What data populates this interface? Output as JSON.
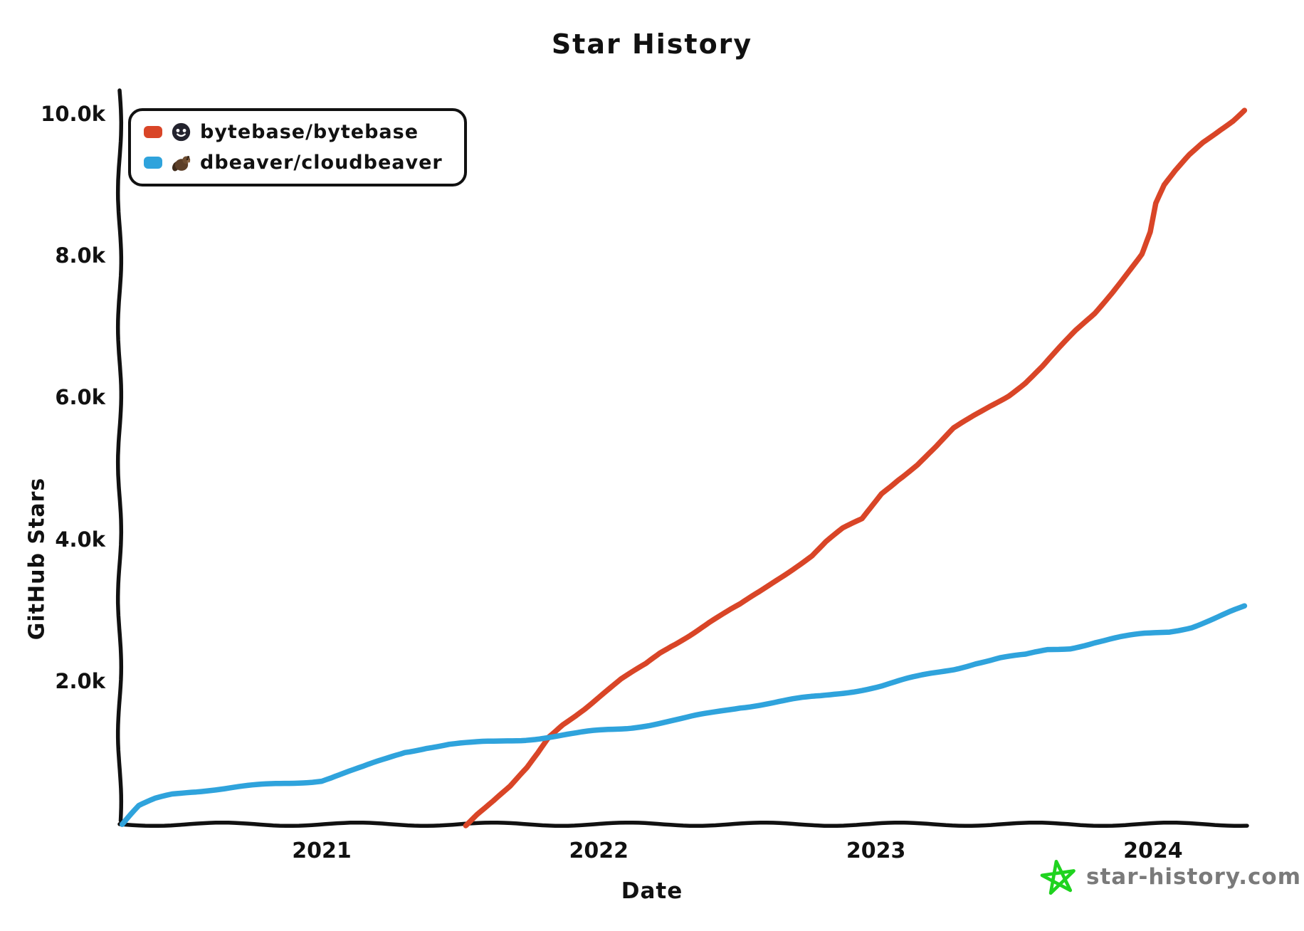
{
  "title": "Star History",
  "watermark": {
    "text": "star-history.com",
    "star_color": "#1fd31f",
    "text_color": "#7a7a7a"
  },
  "legend": {
    "items": [
      {
        "label": "bytebase/bytebase",
        "color": "#d94527",
        "avatar": "bytebase-logo"
      },
      {
        "label": "dbeaver/cloudbeaver",
        "color": "#2fa3dc",
        "avatar": "beaver-logo"
      }
    ]
  },
  "chart_data": {
    "type": "line",
    "title": "Star History",
    "xlabel": "Date",
    "ylabel": "GitHub Stars",
    "xlim": [
      2020.27,
      2024.35
    ],
    "ylim": [
      0,
      10000
    ],
    "grid": false,
    "legend_position": "top-left",
    "style": "xkcd-hand-drawn",
    "axis_color": "#111111",
    "xticks": [
      {
        "label": "2021",
        "value": 2021
      },
      {
        "label": "2022",
        "value": 2022
      },
      {
        "label": "2023",
        "value": 2023
      },
      {
        "label": "2024",
        "value": 2024
      }
    ],
    "yticks": [
      {
        "label": "2.0k",
        "value": 2000
      },
      {
        "label": "4.0k",
        "value": 4000
      },
      {
        "label": "6.0k",
        "value": 6000
      },
      {
        "label": "8.0k",
        "value": 8000
      },
      {
        "label": "10.0k",
        "value": 10000
      }
    ],
    "series": [
      {
        "name": "bytebase/bytebase",
        "color": "#d94527",
        "points": [
          [
            2021.52,
            0
          ],
          [
            2021.56,
            150
          ],
          [
            2021.62,
            330
          ],
          [
            2021.68,
            520
          ],
          [
            2021.74,
            780
          ],
          [
            2021.78,
            1000
          ],
          [
            2021.82,
            1235
          ],
          [
            2021.87,
            1420
          ],
          [
            2021.95,
            1640
          ],
          [
            2022.0,
            1790
          ],
          [
            2022.08,
            2030
          ],
          [
            2022.17,
            2260
          ],
          [
            2022.22,
            2420
          ],
          [
            2022.26,
            2520
          ],
          [
            2022.33,
            2680
          ],
          [
            2022.4,
            2850
          ],
          [
            2022.51,
            3090
          ],
          [
            2022.58,
            3280
          ],
          [
            2022.64,
            3450
          ],
          [
            2022.7,
            3610
          ],
          [
            2022.77,
            3795
          ],
          [
            2022.82,
            3980
          ],
          [
            2022.88,
            4160
          ],
          [
            2022.95,
            4300
          ],
          [
            2023.02,
            4670
          ],
          [
            2023.08,
            4870
          ],
          [
            2023.15,
            5080
          ],
          [
            2023.22,
            5330
          ],
          [
            2023.28,
            5570
          ],
          [
            2023.35,
            5750
          ],
          [
            2023.41,
            5900
          ],
          [
            2023.48,
            6060
          ],
          [
            2023.54,
            6235
          ],
          [
            2023.6,
            6450
          ],
          [
            2023.66,
            6700
          ],
          [
            2023.72,
            6950
          ],
          [
            2023.79,
            7210
          ],
          [
            2023.85,
            7500
          ],
          [
            2023.9,
            7750
          ],
          [
            2023.96,
            8045
          ],
          [
            2023.99,
            8350
          ],
          [
            2024.01,
            8750
          ],
          [
            2024.04,
            9000
          ],
          [
            2024.08,
            9200
          ],
          [
            2024.13,
            9430
          ],
          [
            2024.18,
            9620
          ],
          [
            2024.24,
            9800
          ],
          [
            2024.29,
            9940
          ],
          [
            2024.33,
            10080
          ]
        ]
      },
      {
        "name": "dbeaver/cloudbeaver",
        "color": "#2fa3dc",
        "points": [
          [
            2020.28,
            0
          ],
          [
            2020.31,
            130
          ],
          [
            2020.34,
            250
          ],
          [
            2020.4,
            350
          ],
          [
            2020.46,
            420
          ],
          [
            2020.53,
            465
          ],
          [
            2020.6,
            495
          ],
          [
            2020.7,
            525
          ],
          [
            2020.8,
            550
          ],
          [
            2020.9,
            585
          ],
          [
            2021.0,
            625
          ],
          [
            2021.08,
            720
          ],
          [
            2021.15,
            800
          ],
          [
            2021.22,
            900
          ],
          [
            2021.3,
            1020
          ],
          [
            2021.38,
            1090
          ],
          [
            2021.46,
            1130
          ],
          [
            2021.54,
            1140
          ],
          [
            2021.62,
            1160
          ],
          [
            2021.72,
            1195
          ],
          [
            2021.82,
            1235
          ],
          [
            2021.92,
            1275
          ],
          [
            2022.0,
            1315
          ],
          [
            2022.1,
            1360
          ],
          [
            2022.2,
            1420
          ],
          [
            2022.3,
            1480
          ],
          [
            2022.4,
            1560
          ],
          [
            2022.51,
            1655
          ],
          [
            2022.6,
            1705
          ],
          [
            2022.7,
            1755
          ],
          [
            2022.8,
            1800
          ],
          [
            2022.9,
            1870
          ],
          [
            2023.02,
            1955
          ],
          [
            2023.1,
            2030
          ],
          [
            2023.2,
            2120
          ],
          [
            2023.28,
            2190
          ],
          [
            2023.36,
            2280
          ],
          [
            2023.45,
            2345
          ],
          [
            2023.54,
            2380
          ],
          [
            2023.62,
            2460
          ],
          [
            2023.7,
            2490
          ],
          [
            2023.79,
            2570
          ],
          [
            2023.88,
            2630
          ],
          [
            2023.97,
            2680
          ],
          [
            2024.06,
            2720
          ],
          [
            2024.14,
            2790
          ],
          [
            2024.22,
            2900
          ],
          [
            2024.28,
            2990
          ],
          [
            2024.33,
            3060
          ]
        ]
      }
    ]
  }
}
